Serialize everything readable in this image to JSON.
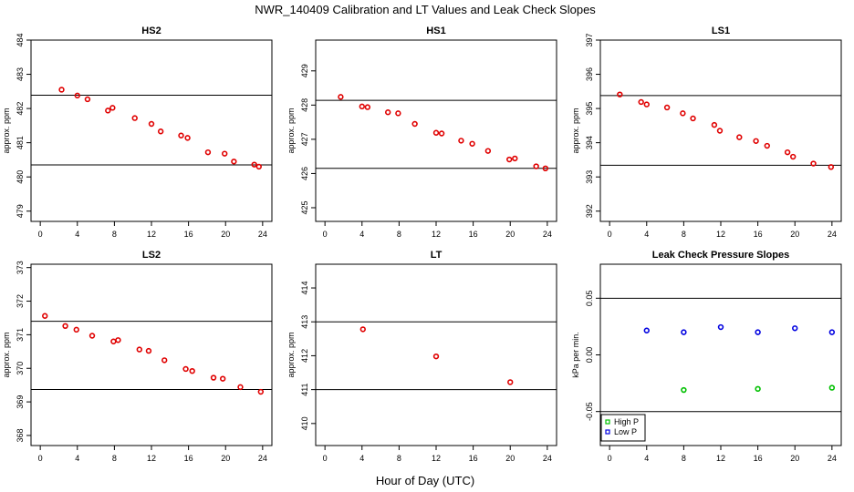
{
  "figure": {
    "title": "NWR_140409  Calibration and LT Values and Leak Check Slopes",
    "xlabel": "Hour of Day (UTC)"
  },
  "colors": {
    "cal_points": "#e00000",
    "high_p": "#00c000",
    "low_p": "#0000e0",
    "axes": "#000000"
  },
  "chart_data": [
    {
      "type": "scatter",
      "title": "HS2",
      "xlabel": "",
      "ylabel": "approx. ppm",
      "xlim": [
        -1,
        25
      ],
      "xticks": [
        0,
        4,
        8,
        12,
        16,
        20,
        24
      ],
      "ylim": [
        478.7,
        484.0
      ],
      "yticks": [
        479,
        480,
        481,
        482,
        483,
        484
      ],
      "hlines": [
        482.39,
        480.35
      ],
      "series": [
        {
          "x": [
            2.3,
            4.0,
            5.1,
            7.3,
            7.8,
            10.2,
            12.0,
            13.0,
            15.2,
            15.9,
            18.1,
            19.9,
            20.9,
            23.1,
            23.6
          ],
          "y": [
            482.55,
            482.38,
            482.27,
            481.94,
            482.02,
            481.72,
            481.55,
            481.33,
            481.21,
            481.14,
            480.72,
            480.68,
            480.45,
            480.36,
            480.3
          ]
        }
      ]
    },
    {
      "type": "scatter",
      "title": "HS1",
      "xlabel": "",
      "ylabel": "approx. ppm",
      "xlim": [
        -1,
        25
      ],
      "xticks": [
        0,
        4,
        8,
        12,
        16,
        20,
        24
      ],
      "ylim": [
        424.6,
        429.9
      ],
      "yticks": [
        425,
        426,
        427,
        428,
        429
      ],
      "hlines": [
        428.14,
        426.15
      ],
      "series": [
        {
          "x": [
            1.7,
            4.0,
            4.6,
            6.8,
            7.9,
            9.7,
            12.0,
            12.6,
            14.7,
            15.9,
            17.6,
            19.9,
            20.5,
            22.8,
            23.8
          ],
          "y": [
            428.24,
            427.96,
            427.94,
            427.79,
            427.76,
            427.45,
            427.19,
            427.17,
            426.96,
            426.87,
            426.66,
            426.41,
            426.44,
            426.21,
            426.15
          ]
        }
      ]
    },
    {
      "type": "scatter",
      "title": "LS1",
      "xlabel": "",
      "ylabel": "approx. ppm",
      "xlim": [
        -1,
        25
      ],
      "xticks": [
        0,
        4,
        8,
        12,
        16,
        20,
        24
      ],
      "ylim": [
        391.7,
        397.0
      ],
      "yticks": [
        392,
        393,
        394,
        395,
        396,
        397
      ],
      "hlines": [
        395.38,
        393.34
      ],
      "series": [
        {
          "x": [
            1.1,
            3.4,
            4.0,
            6.2,
            7.9,
            9.0,
            11.3,
            11.9,
            14.0,
            15.8,
            17.0,
            19.2,
            19.8,
            22.0,
            23.9
          ],
          "y": [
            395.41,
            395.19,
            395.12,
            395.03,
            394.86,
            394.71,
            394.52,
            394.35,
            394.16,
            394.05,
            393.91,
            393.72,
            393.59,
            393.39,
            393.29
          ]
        }
      ]
    },
    {
      "type": "scatter",
      "title": "LS2",
      "xlabel": "",
      "ylabel": "approx. ppm",
      "xlim": [
        -1,
        25
      ],
      "xticks": [
        0,
        4,
        8,
        12,
        16,
        20,
        24
      ],
      "ylim": [
        367.7,
        373.1
      ],
      "yticks": [
        368,
        369,
        370,
        371,
        372,
        373
      ],
      "hlines": [
        371.4,
        369.37
      ],
      "series": [
        {
          "x": [
            0.5,
            2.7,
            3.9,
            5.6,
            7.9,
            8.4,
            10.7,
            11.7,
            13.4,
            15.7,
            16.4,
            18.7,
            19.7,
            21.6,
            23.8
          ],
          "y": [
            371.56,
            371.26,
            371.15,
            370.97,
            370.8,
            370.84,
            370.56,
            370.52,
            370.24,
            369.98,
            369.92,
            369.72,
            369.69,
            369.44,
            369.3
          ]
        }
      ]
    },
    {
      "type": "scatter",
      "title": "LT",
      "xlabel": "",
      "ylabel": "approx. ppm",
      "xlim": [
        -1,
        25
      ],
      "xticks": [
        0,
        4,
        8,
        12,
        16,
        20,
        24
      ],
      "ylim": [
        409.35,
        414.7
      ],
      "yticks": [
        410,
        411,
        412,
        413,
        414
      ],
      "hlines": [
        413.0,
        411.0
      ],
      "series": [
        {
          "x": [
            4.1,
            12.0,
            20.0
          ],
          "y": [
            412.78,
            411.98,
            411.22
          ]
        }
      ]
    },
    {
      "type": "scatter",
      "title": "Leak Check Pressure Slopes",
      "xlabel": "",
      "ylabel": "kPa per min.",
      "xlim": [
        -1,
        25
      ],
      "xticks": [
        0,
        4,
        8,
        12,
        16,
        20,
        24
      ],
      "ylim": [
        -0.08,
        0.08
      ],
      "yticks": [
        -0.05,
        0.0,
        0.05
      ],
      "ytick_labels": [
        "-0.05",
        "0.00",
        "0.05"
      ],
      "hlines": [
        0.05,
        -0.05
      ],
      "legend": {
        "placement": "bottom-left",
        "entries": [
          "High P",
          "Low P"
        ]
      },
      "series": [
        {
          "name": "High P",
          "color": "#00c000",
          "x": [
            8.0,
            16.0,
            24.0
          ],
          "y": [
            -0.031,
            -0.03,
            -0.029
          ]
        },
        {
          "name": "Low P",
          "color": "#0000e0",
          "x": [
            4.0,
            8.0,
            12.0,
            16.0,
            20.0,
            24.0
          ],
          "y": [
            0.0215,
            0.02,
            0.0245,
            0.02,
            0.0235,
            0.02
          ]
        }
      ]
    }
  ]
}
